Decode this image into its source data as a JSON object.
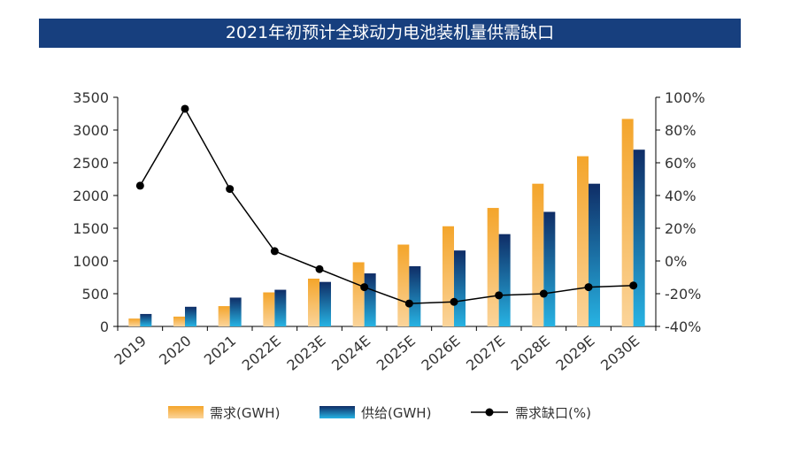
{
  "chart_data": {
    "type": "bar+line",
    "title": "2021年初预计全球动力电池装机量供需缺口",
    "categories": [
      "2019",
      "2020",
      "2021",
      "2022E",
      "2023E",
      "2024E",
      "2025E",
      "2026E",
      "2027E",
      "2028E",
      "2029E",
      "2030E"
    ],
    "series": [
      {
        "name": "需求(GWH)",
        "type": "bar",
        "axis": "left",
        "values": [
          120,
          150,
          310,
          520,
          730,
          980,
          1250,
          1530,
          1810,
          2180,
          2600,
          3170
        ]
      },
      {
        "name": "供给(GWH)",
        "type": "bar",
        "axis": "left",
        "values": [
          190,
          300,
          440,
          560,
          680,
          810,
          920,
          1160,
          1410,
          1750,
          2180,
          2700
        ]
      },
      {
        "name": "需求缺口(%)",
        "type": "line",
        "axis": "right",
        "values": [
          46,
          93,
          44,
          6,
          -5,
          -16,
          -26,
          -25,
          -21,
          -20,
          -16,
          -15
        ]
      }
    ],
    "y_left": {
      "min": 0,
      "max": 3500,
      "ticks": [
        "0",
        "500",
        "1000",
        "1500",
        "2000",
        "2500",
        "3000",
        "3500"
      ]
    },
    "y_right": {
      "min": -40,
      "max": 100,
      "ticks": [
        "-40%",
        "-20%",
        "0%",
        "20%",
        "40%",
        "60%",
        "80%",
        "100%"
      ]
    },
    "legend_position": "bottom",
    "colors": {
      "demand_top": "#f4a52b",
      "demand_bottom": "#fbd49a",
      "supply_top": "#0f2d66",
      "supply_bottom": "#27b3e3",
      "line": "#000000",
      "title_bg": "#173f7e"
    }
  }
}
